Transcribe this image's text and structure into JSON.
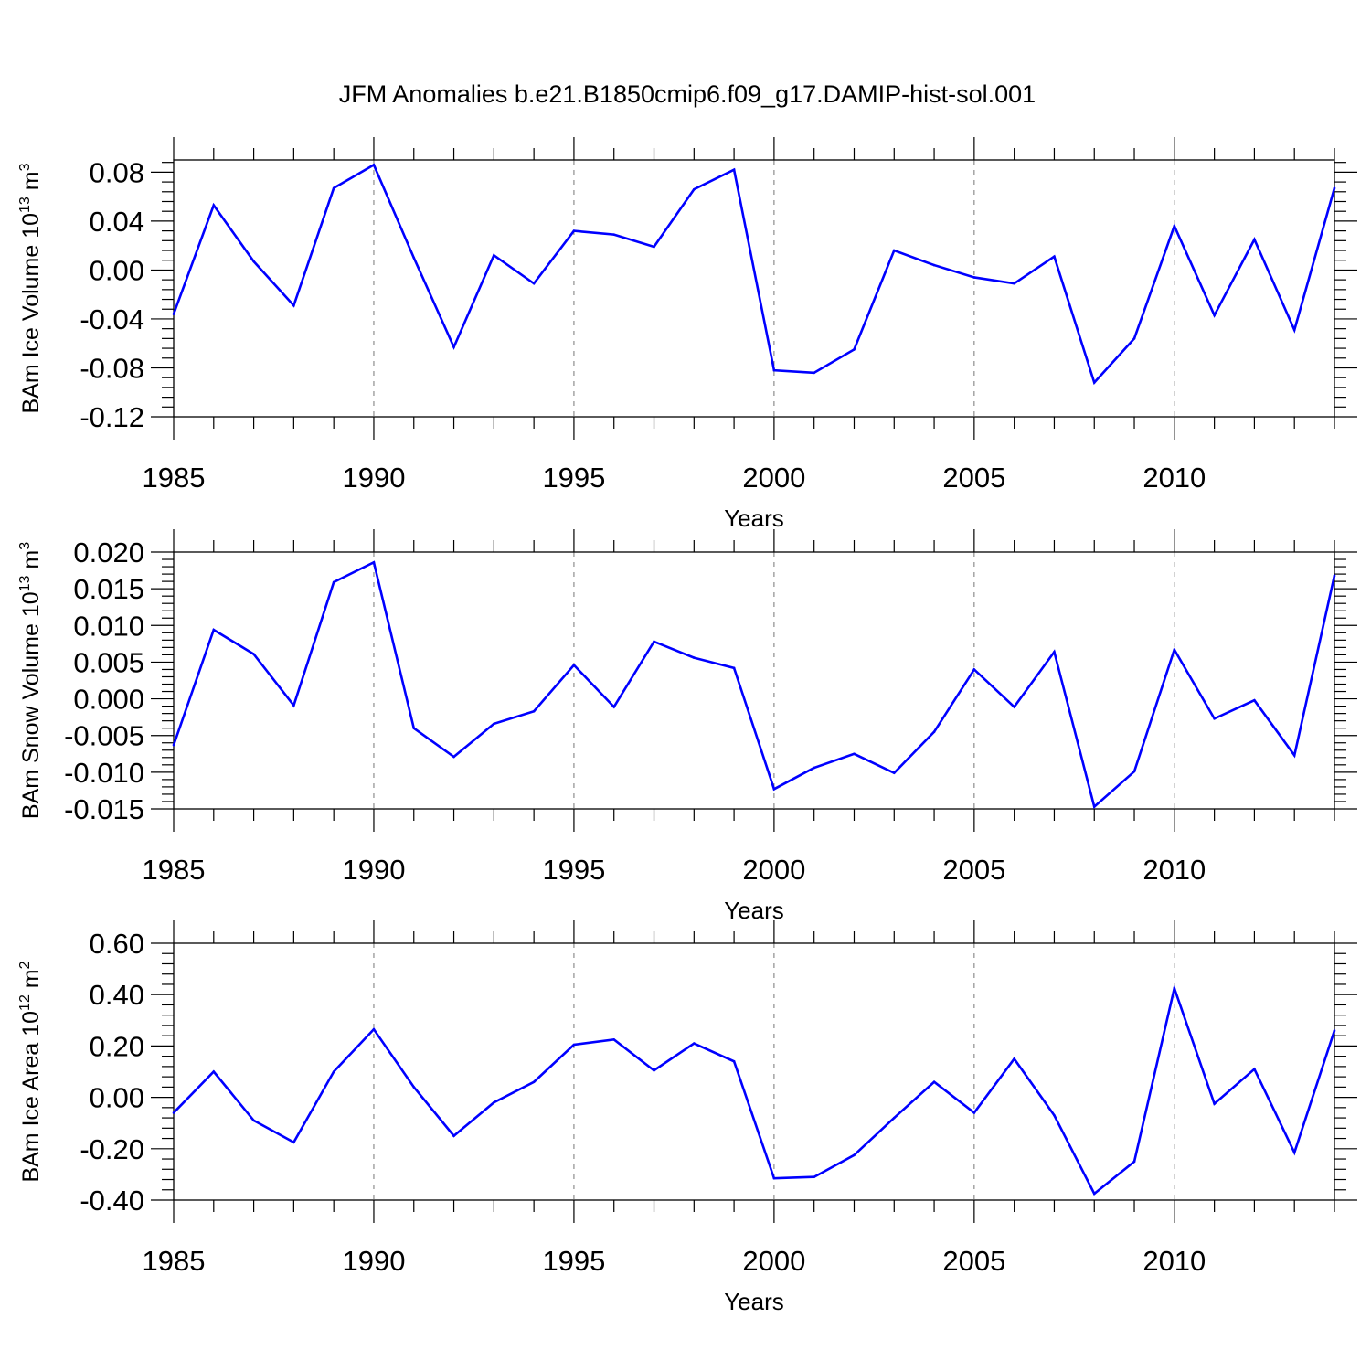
{
  "title": "JFM Anomalies b.e21.B1850cmip6.f09_g17.DAMIP-hist-sol.001",
  "colors": {
    "line": "#0000ff",
    "axis": "#000000",
    "grid": "#777777",
    "background": "#ffffff"
  },
  "chart_data": [
    {
      "type": "line",
      "title": "JFM Anomalies b.e21.B1850cmip6.f09_g17.DAMIP-hist-sol.001",
      "ylabel": {
        "main": "BAm Ice Volume 10",
        "exp": "13",
        "unit": " m",
        "unit_exp": "3"
      },
      "xlabel": "Years",
      "xlim": [
        1985,
        2014
      ],
      "ylim": [
        -0.12,
        0.09
      ],
      "xticks": [
        1985,
        1990,
        1995,
        2000,
        2005,
        2010
      ],
      "xtick_labels": [
        "1985",
        "1990",
        "1995",
        "2000",
        "2005",
        "2010"
      ],
      "yticks": [
        -0.12,
        -0.08,
        -0.04,
        0.0,
        0.04,
        0.08
      ],
      "ytick_labels": [
        "-0.12",
        "-0.08",
        "-0.04",
        "0.00",
        "0.04",
        "0.08"
      ],
      "x": [
        1985,
        1986,
        1987,
        1988,
        1989,
        1990,
        1991,
        1992,
        1993,
        1994,
        1995,
        1996,
        1997,
        1998,
        1999,
        2000,
        2001,
        2002,
        2003,
        2004,
        2005,
        2006,
        2007,
        2008,
        2009,
        2010,
        2011,
        2012,
        2013,
        2014
      ],
      "series": [
        {
          "name": "BAm Ice Volume",
          "values": [
            -0.036,
            0.053,
            0.007,
            -0.029,
            0.067,
            0.086,
            0.01,
            -0.063,
            0.012,
            -0.011,
            0.032,
            0.029,
            0.019,
            0.066,
            0.082,
            -0.082,
            -0.084,
            -0.065,
            0.016,
            0.004,
            -0.006,
            -0.011,
            0.011,
            -0.092,
            -0.056,
            0.036,
            -0.037,
            0.025,
            -0.049,
            0.067
          ]
        }
      ]
    },
    {
      "type": "line",
      "ylabel": {
        "main": "BAm Snow Volume 10",
        "exp": "13",
        "unit": " m",
        "unit_exp": "3"
      },
      "xlabel": "Years",
      "xlim": [
        1985,
        2014
      ],
      "ylim": [
        -0.015,
        0.02
      ],
      "xticks": [
        1985,
        1990,
        1995,
        2000,
        2005,
        2010
      ],
      "xtick_labels": [
        "1985",
        "1990",
        "1995",
        "2000",
        "2005",
        "2010"
      ],
      "yticks": [
        -0.015,
        -0.01,
        -0.005,
        0.0,
        0.005,
        0.01,
        0.015,
        0.02
      ],
      "ytick_labels": [
        "-0.015",
        "-0.010",
        "-0.005",
        "0.000",
        "0.005",
        "0.010",
        "0.015",
        "0.020"
      ],
      "x": [
        1985,
        1986,
        1987,
        1988,
        1989,
        1990,
        1991,
        1992,
        1993,
        1994,
        1995,
        1996,
        1997,
        1998,
        1999,
        2000,
        2001,
        2002,
        2003,
        2004,
        2005,
        2006,
        2007,
        2008,
        2009,
        2010,
        2011,
        2012,
        2013,
        2014
      ],
      "series": [
        {
          "name": "BAm Snow Volume",
          "values": [
            -0.0063,
            0.0094,
            0.0061,
            -0.0009,
            0.0159,
            0.0186,
            -0.004,
            -0.0079,
            -0.0034,
            -0.0017,
            0.0046,
            -0.0011,
            0.0078,
            0.0056,
            0.0042,
            -0.0123,
            -0.0094,
            -0.0075,
            -0.0101,
            -0.0045,
            0.004,
            -0.0011,
            0.0064,
            -0.0147,
            -0.0099,
            0.0067,
            -0.0027,
            -0.0002,
            -0.0077,
            0.0168
          ]
        }
      ]
    },
    {
      "type": "line",
      "ylabel": {
        "main": "BAm Ice Area 10",
        "exp": "12",
        "unit": " m",
        "unit_exp": "2"
      },
      "xlabel": "Years",
      "xlim": [
        1985,
        2014
      ],
      "ylim": [
        -0.4,
        0.6
      ],
      "xticks": [
        1985,
        1990,
        1995,
        2000,
        2005,
        2010
      ],
      "xtick_labels": [
        "1985",
        "1990",
        "1995",
        "2000",
        "2005",
        "2010"
      ],
      "yticks": [
        -0.4,
        -0.2,
        0.0,
        0.2,
        0.4,
        0.6
      ],
      "ytick_labels": [
        "-0.40",
        "-0.20",
        "0.00",
        "0.20",
        "0.40",
        "0.60"
      ],
      "x": [
        1985,
        1986,
        1987,
        1988,
        1989,
        1990,
        1991,
        1992,
        1993,
        1994,
        1995,
        1996,
        1997,
        1998,
        1999,
        2000,
        2001,
        2002,
        2003,
        2004,
        2005,
        2006,
        2007,
        2008,
        2009,
        2010,
        2011,
        2012,
        2013,
        2014
      ],
      "series": [
        {
          "name": "BAm Ice Area",
          "values": [
            -0.06,
            0.1,
            -0.09,
            -0.175,
            0.1,
            0.265,
            0.04,
            -0.15,
            -0.02,
            0.06,
            0.205,
            0.225,
            0.105,
            0.21,
            0.14,
            -0.315,
            -0.31,
            -0.225,
            -0.08,
            0.06,
            -0.06,
            0.15,
            -0.07,
            -0.375,
            -0.25,
            0.425,
            -0.025,
            0.11,
            -0.215,
            0.26
          ]
        }
      ]
    }
  ]
}
